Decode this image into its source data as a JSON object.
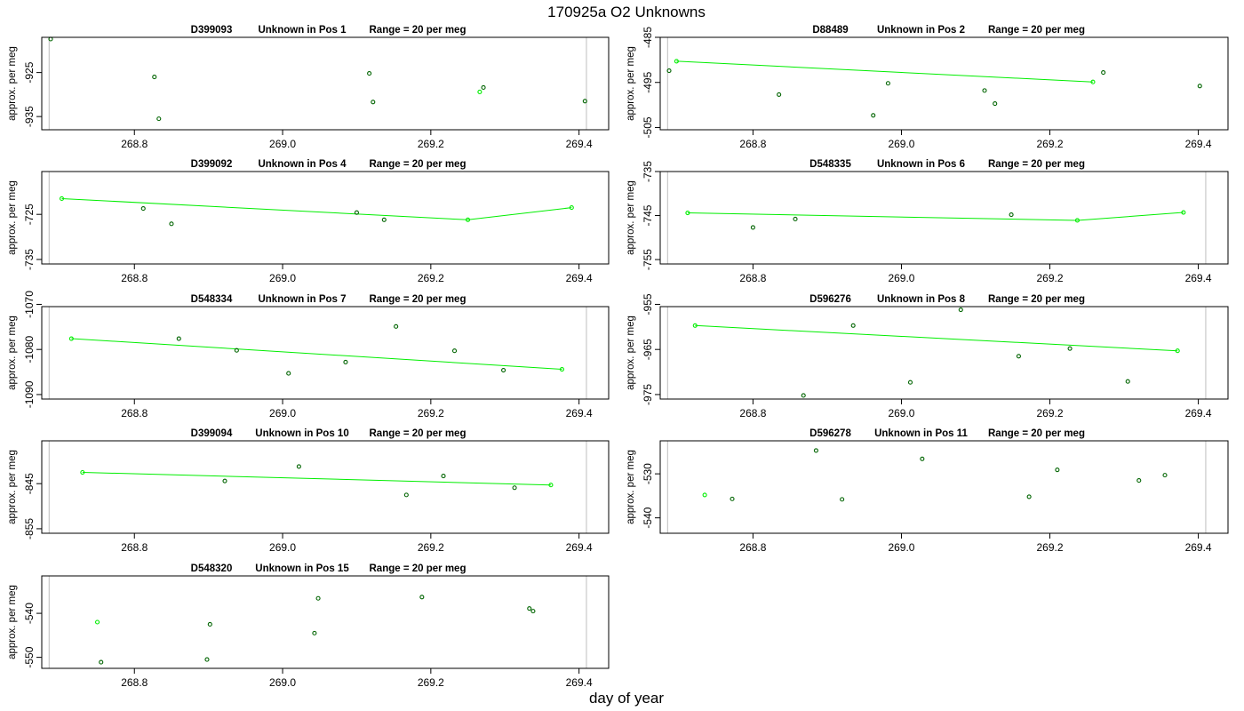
{
  "figure": {
    "title": "170925a  O2 Unknowns",
    "xlabel": "day of year",
    "ylabel": "approx. per meg"
  },
  "colors": {
    "point_dark": "#006400",
    "point_light": "#00ee00",
    "fit_line": "#00ee00",
    "vline": "#c8c8c8",
    "axes": "#000000"
  },
  "chart_data": [
    {
      "type": "scatter",
      "id": "D399093",
      "position_label": "Unknown in Pos 1",
      "range_label": "Range = 20 per meg",
      "xlim": [
        268.675,
        269.44
      ],
      "ylim": [
        -938,
        -917
      ],
      "xticks": [
        "268.8",
        "269.0",
        "269.2",
        "269.4"
      ],
      "yticks": [
        "-925",
        "-935"
      ],
      "vlines": [
        268.685,
        269.41
      ],
      "points": [
        {
          "x": 268.687,
          "y": -917.4,
          "style": "dark"
        },
        {
          "x": 268.827,
          "y": -926.0,
          "style": "dark"
        },
        {
          "x": 268.833,
          "y": -935.5,
          "style": "dark"
        },
        {
          "x": 269.117,
          "y": -925.2,
          "style": "dark"
        },
        {
          "x": 269.122,
          "y": -931.7,
          "style": "dark"
        },
        {
          "x": 269.266,
          "y": -929.4,
          "style": "light"
        },
        {
          "x": 269.271,
          "y": -928.4,
          "style": "dark"
        },
        {
          "x": 269.408,
          "y": -931.5,
          "style": "dark"
        }
      ],
      "fit_line": []
    },
    {
      "type": "scatter",
      "id": "D88489",
      "position_label": "Unknown in Pos 2",
      "range_label": "Range = 20 per meg",
      "xlim": [
        268.675,
        269.44
      ],
      "ylim": [
        -505.5,
        -485
      ],
      "xticks": [
        "268.8",
        "269.0",
        "269.2",
        "269.4"
      ],
      "yticks": [
        "-485",
        "-495",
        "-505"
      ],
      "vlines": [
        268.685
      ],
      "points": [
        {
          "x": 268.687,
          "y": -492.4,
          "style": "dark"
        },
        {
          "x": 268.697,
          "y": -490.3,
          "style": "light"
        },
        {
          "x": 268.835,
          "y": -497.7,
          "style": "dark"
        },
        {
          "x": 268.962,
          "y": -502.3,
          "style": "dark"
        },
        {
          "x": 268.982,
          "y": -495.2,
          "style": "dark"
        },
        {
          "x": 269.112,
          "y": -496.8,
          "style": "dark"
        },
        {
          "x": 269.126,
          "y": -499.7,
          "style": "dark"
        },
        {
          "x": 269.258,
          "y": -494.9,
          "style": "light"
        },
        {
          "x": 269.272,
          "y": -492.8,
          "style": "dark"
        },
        {
          "x": 269.402,
          "y": -495.8,
          "style": "dark"
        }
      ],
      "fit_line": [
        [
          268.697,
          -490.3
        ],
        [
          269.258,
          -494.9
        ]
      ]
    },
    {
      "type": "scatter",
      "id": "D399092",
      "position_label": "Unknown in Pos 4",
      "range_label": "Range = 20 per meg",
      "xlim": [
        268.675,
        269.44
      ],
      "ylim": [
        -736,
        -715.5
      ],
      "xticks": [
        "268.8",
        "269.0",
        "269.2",
        "269.4"
      ],
      "yticks": [
        "-725",
        "-735"
      ],
      "vlines": [
        268.685
      ],
      "points": [
        {
          "x": 268.702,
          "y": -721.5,
          "style": "light"
        },
        {
          "x": 268.812,
          "y": -723.7,
          "style": "dark"
        },
        {
          "x": 268.85,
          "y": -727.1,
          "style": "dark"
        },
        {
          "x": 269.1,
          "y": -724.6,
          "style": "dark"
        },
        {
          "x": 269.137,
          "y": -726.2,
          "style": "dark"
        },
        {
          "x": 269.25,
          "y": -726.2,
          "style": "light"
        },
        {
          "x": 269.39,
          "y": -723.5,
          "style": "light"
        }
      ],
      "fit_line": [
        [
          268.702,
          -721.5
        ],
        [
          269.25,
          -726.2
        ],
        [
          269.39,
          -723.5
        ]
      ]
    },
    {
      "type": "scatter",
      "id": "D548335",
      "position_label": "Unknown in Pos 6",
      "range_label": "Range = 20 per meg",
      "xlim": [
        268.675,
        269.44
      ],
      "ylim": [
        -756,
        -735
      ],
      "xticks": [
        "268.8",
        "269.0",
        "269.2",
        "269.4"
      ],
      "yticks": [
        "-735",
        "-745",
        "-755"
      ],
      "vlines": [
        268.685,
        269.41
      ],
      "points": [
        {
          "x": 268.712,
          "y": -744.4,
          "style": "light"
        },
        {
          "x": 268.8,
          "y": -747.7,
          "style": "dark"
        },
        {
          "x": 268.857,
          "y": -745.8,
          "style": "dark"
        },
        {
          "x": 269.148,
          "y": -744.8,
          "style": "dark"
        },
        {
          "x": 269.237,
          "y": -746.1,
          "style": "light"
        },
        {
          "x": 269.38,
          "y": -744.3,
          "style": "light"
        }
      ],
      "fit_line": [
        [
          268.712,
          -744.4
        ],
        [
          269.237,
          -746.1
        ],
        [
          269.38,
          -744.3
        ]
      ]
    },
    {
      "type": "scatter",
      "id": "D548334",
      "position_label": "Unknown in Pos 7",
      "range_label": "Range = 20 per meg",
      "xlim": [
        268.675,
        269.44
      ],
      "ylim": [
        -1091,
        -1070.5
      ],
      "xticks": [
        "268.8",
        "269.0",
        "269.2",
        "269.4"
      ],
      "yticks": [
        "-1070",
        "-1080",
        "-1090"
      ],
      "vlines": [
        268.685,
        269.41
      ],
      "points": [
        {
          "x": 268.715,
          "y": -1077.6,
          "style": "light"
        },
        {
          "x": 268.86,
          "y": -1077.6,
          "style": "dark"
        },
        {
          "x": 268.938,
          "y": -1080.2,
          "style": "dark"
        },
        {
          "x": 269.008,
          "y": -1085.3,
          "style": "dark"
        },
        {
          "x": 269.085,
          "y": -1082.8,
          "style": "dark"
        },
        {
          "x": 269.153,
          "y": -1074.9,
          "style": "dark"
        },
        {
          "x": 269.232,
          "y": -1080.3,
          "style": "dark"
        },
        {
          "x": 269.298,
          "y": -1084.6,
          "style": "dark"
        },
        {
          "x": 269.377,
          "y": -1084.4,
          "style": "light"
        }
      ],
      "fit_line": [
        [
          268.715,
          -1077.6
        ],
        [
          269.377,
          -1084.4
        ]
      ]
    },
    {
      "type": "scatter",
      "id": "D596276",
      "position_label": "Unknown in Pos 8",
      "range_label": "Range = 20 per meg",
      "xlim": [
        268.675,
        269.44
      ],
      "ylim": [
        -976,
        -955.5
      ],
      "xticks": [
        "268.8",
        "269.0",
        "269.2",
        "269.4"
      ],
      "yticks": [
        "-955",
        "-965",
        "-975"
      ],
      "vlines": [
        268.685,
        269.41
      ],
      "points": [
        {
          "x": 268.722,
          "y": -959.7,
          "style": "light"
        },
        {
          "x": 268.868,
          "y": -975.2,
          "style": "dark"
        },
        {
          "x": 268.935,
          "y": -959.7,
          "style": "dark"
        },
        {
          "x": 269.012,
          "y": -972.3,
          "style": "dark"
        },
        {
          "x": 269.08,
          "y": -956.2,
          "style": "dark"
        },
        {
          "x": 269.158,
          "y": -966.5,
          "style": "dark"
        },
        {
          "x": 269.227,
          "y": -964.8,
          "style": "dark"
        },
        {
          "x": 269.305,
          "y": -972.1,
          "style": "dark"
        },
        {
          "x": 269.372,
          "y": -965.3,
          "style": "light"
        }
      ],
      "fit_line": [
        [
          268.722,
          -959.7
        ],
        [
          269.372,
          -965.3
        ]
      ]
    },
    {
      "type": "scatter",
      "id": "D399094",
      "position_label": "Unknown in Pos 10",
      "range_label": "Range = 20 per meg",
      "xlim": [
        268.675,
        269.44
      ],
      "ylim": [
        -856,
        -835.5
      ],
      "xticks": [
        "268.8",
        "269.0",
        "269.2",
        "269.4"
      ],
      "yticks": [
        "-845",
        "-855"
      ],
      "vlines": [
        268.685,
        269.41
      ],
      "points": [
        {
          "x": 268.73,
          "y": -842.5,
          "style": "light"
        },
        {
          "x": 268.922,
          "y": -844.4,
          "style": "dark"
        },
        {
          "x": 269.022,
          "y": -841.2,
          "style": "dark"
        },
        {
          "x": 269.167,
          "y": -847.5,
          "style": "dark"
        },
        {
          "x": 269.217,
          "y": -843.3,
          "style": "dark"
        },
        {
          "x": 269.313,
          "y": -845.9,
          "style": "dark"
        },
        {
          "x": 269.362,
          "y": -845.3,
          "style": "light"
        }
      ],
      "fit_line": [
        [
          268.73,
          -842.5
        ],
        [
          269.362,
          -845.3
        ]
      ]
    },
    {
      "type": "scatter",
      "id": "D596278",
      "position_label": "Unknown in Pos 11",
      "range_label": "Range = 20 per meg",
      "xlim": [
        268.675,
        269.44
      ],
      "ylim": [
        -543.5,
        -522.5
      ],
      "xticks": [
        "268.8",
        "269.0",
        "269.2",
        "269.4"
      ],
      "yticks": [
        "-530",
        "-540"
      ],
      "vlines": [
        268.685,
        269.41
      ],
      "points": [
        {
          "x": 268.735,
          "y": -534.8,
          "style": "light"
        },
        {
          "x": 268.772,
          "y": -535.7,
          "style": "dark"
        },
        {
          "x": 268.885,
          "y": -524.7,
          "style": "dark"
        },
        {
          "x": 268.92,
          "y": -535.8,
          "style": "dark"
        },
        {
          "x": 269.028,
          "y": -526.6,
          "style": "dark"
        },
        {
          "x": 269.172,
          "y": -535.2,
          "style": "dark"
        },
        {
          "x": 269.21,
          "y": -529.1,
          "style": "dark"
        },
        {
          "x": 269.32,
          "y": -531.5,
          "style": "dark"
        },
        {
          "x": 269.355,
          "y": -530.3,
          "style": "dark"
        }
      ],
      "fit_line": []
    },
    {
      "type": "scatter",
      "id": "D548320",
      "position_label": "Unknown in Pos 15",
      "range_label": "Range = 20 per meg",
      "xlim": [
        268.675,
        269.44
      ],
      "ylim": [
        -552.5,
        -531.5
      ],
      "xticks": [
        "268.8",
        "269.0",
        "269.2",
        "269.4"
      ],
      "yticks": [
        "-540",
        "-550"
      ],
      "vlines": [
        268.685,
        269.41
      ],
      "points": [
        {
          "x": 268.75,
          "y": -542.0,
          "style": "light"
        },
        {
          "x": 268.755,
          "y": -551.1,
          "style": "dark"
        },
        {
          "x": 268.898,
          "y": -550.5,
          "style": "dark"
        },
        {
          "x": 268.902,
          "y": -542.5,
          "style": "dark"
        },
        {
          "x": 269.043,
          "y": -544.5,
          "style": "dark"
        },
        {
          "x": 269.048,
          "y": -536.6,
          "style": "dark"
        },
        {
          "x": 269.188,
          "y": -536.3,
          "style": "dark"
        },
        {
          "x": 269.333,
          "y": -538.9,
          "style": "dark"
        },
        {
          "x": 269.338,
          "y": -539.5,
          "style": "dark"
        }
      ],
      "fit_line": []
    }
  ]
}
